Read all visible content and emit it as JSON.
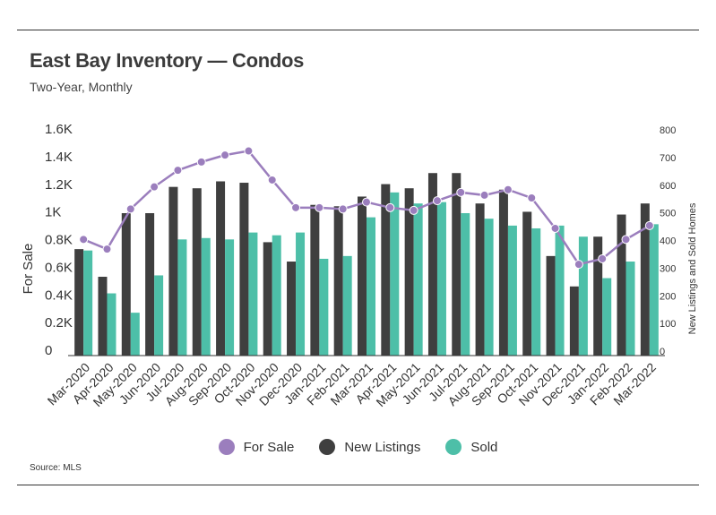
{
  "header": {
    "title": "East Bay Inventory — Condos",
    "subtitle": "Two-Year, Monthly"
  },
  "footer": {
    "source": "Source:  MLS"
  },
  "colors": {
    "for_sale": "#9b7ebd",
    "new_listings": "#3f3f3f",
    "sold": "#4dbfa8",
    "axis": "#333333"
  },
  "chart_data": {
    "type": "bar",
    "categories": [
      "Mar-2020",
      "Apr-2020",
      "May-2020",
      "Jun-2020",
      "Jul-2020",
      "Aug-2020",
      "Sep-2020",
      "Oct-2020",
      "Nov-2020",
      "Dec-2020",
      "Jan-2021",
      "Feb-2021",
      "Mar-2021",
      "Apr-2021",
      "May-2021",
      "Jun-2021",
      "Jul-2021",
      "Aug-2021",
      "Sep-2021",
      "Oct-2021",
      "Nov-2021",
      "Dec-2021",
      "Jan-2022",
      "Feb-2022",
      "Mar-2022"
    ],
    "ylabel": "For Sale",
    "y2label": "New Listings and Sold Homes",
    "ylim": [
      0,
      1600
    ],
    "y2lim": [
      0,
      800
    ],
    "yticks": [
      "0",
      "0.2K",
      "0.4K",
      "0.6K",
      "0.8K",
      "1K",
      "1.2K",
      "1.4K",
      "1.6K"
    ],
    "y2ticks": [
      "0",
      "100",
      "200",
      "300",
      "400",
      "500",
      "600",
      "700",
      "800"
    ],
    "series": [
      {
        "name": "For Sale",
        "type": "line",
        "axis": "left",
        "values": [
          840,
          770,
          1060,
          1220,
          1340,
          1400,
          1450,
          1480,
          1270,
          1070,
          1070,
          1060,
          1110,
          1070,
          1050,
          1120,
          1180,
          1160,
          1200,
          1140,
          920,
          660,
          700,
          840,
          940
        ]
      },
      {
        "name": "New Listings",
        "type": "bar",
        "axis": "right",
        "values": [
          385,
          285,
          515,
          515,
          610,
          605,
          630,
          625,
          410,
          340,
          545,
          540,
          575,
          620,
          605,
          660,
          660,
          550,
          600,
          520,
          360,
          250,
          430,
          510,
          550
        ]
      },
      {
        "name": "Sold",
        "type": "bar",
        "axis": "right",
        "values": [
          380,
          225,
          155,
          290,
          420,
          425,
          420,
          445,
          435,
          445,
          350,
          360,
          500,
          590,
          550,
          555,
          515,
          495,
          470,
          460,
          470,
          430,
          280,
          340,
          475
        ]
      }
    ],
    "legend": "bottom",
    "grid": false
  }
}
